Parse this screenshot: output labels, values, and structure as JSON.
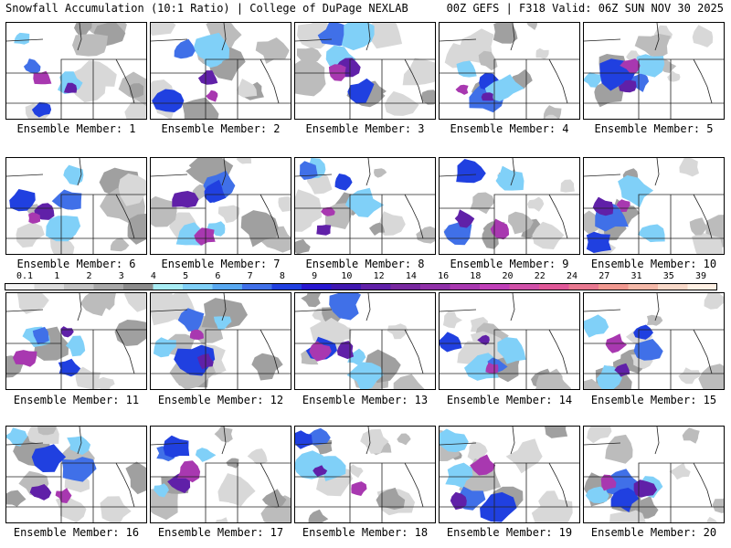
{
  "header": {
    "left": "Snowfall Accumulation (10:1 Ratio) | College of DuPage NEXLAB",
    "right": "00Z GEFS | F318 Valid: 06Z SUN NOV 30 2025"
  },
  "caption_prefix": "Ensemble Member: ",
  "members": [
    {
      "label": "Ensemble Member: 1"
    },
    {
      "label": "Ensemble Member: 2"
    },
    {
      "label": "Ensemble Member: 3"
    },
    {
      "label": "Ensemble Member: 4"
    },
    {
      "label": "Ensemble Member: 5"
    },
    {
      "label": "Ensemble Member: 6"
    },
    {
      "label": "Ensemble Member: 7"
    },
    {
      "label": "Ensemble Member: 8"
    },
    {
      "label": "Ensemble Member: 9"
    },
    {
      "label": "Ensemble Member: 10"
    },
    {
      "label": "Ensemble Member: 11"
    },
    {
      "label": "Ensemble Member: 12"
    },
    {
      "label": "Ensemble Member: 13"
    },
    {
      "label": "Ensemble Member: 14"
    },
    {
      "label": "Ensemble Member: 15"
    },
    {
      "label": "Ensemble Member: 16"
    },
    {
      "label": "Ensemble Member: 17"
    },
    {
      "label": "Ensemble Member: 18"
    },
    {
      "label": "Ensemble Member: 19"
    },
    {
      "label": "Ensemble Member: 20"
    }
  ],
  "colorbar": {
    "ticks": [
      "0.1",
      "1",
      "2",
      "3",
      "4",
      "5",
      "6",
      "7",
      "8",
      "9",
      "10",
      "12",
      "14",
      "16",
      "18",
      "20",
      "22",
      "24",
      "27",
      "31",
      "35",
      "39"
    ],
    "colors": [
      "#f4f4f4",
      "#dcdcdc",
      "#c4c4c4",
      "#a8a8a8",
      "#8c8c8c",
      "#a8ecf4",
      "#80d0f8",
      "#58a8f0",
      "#4070e8",
      "#2040e0",
      "#2818d0",
      "#4018b0",
      "#6020a8",
      "#7828a0",
      "#9030a8",
      "#a838b0",
      "#c040b8",
      "#d050a8",
      "#e05898",
      "#e87890",
      "#f09890",
      "#f4b8a8",
      "#f8d8c8",
      "#fff0e4"
    ]
  }
}
